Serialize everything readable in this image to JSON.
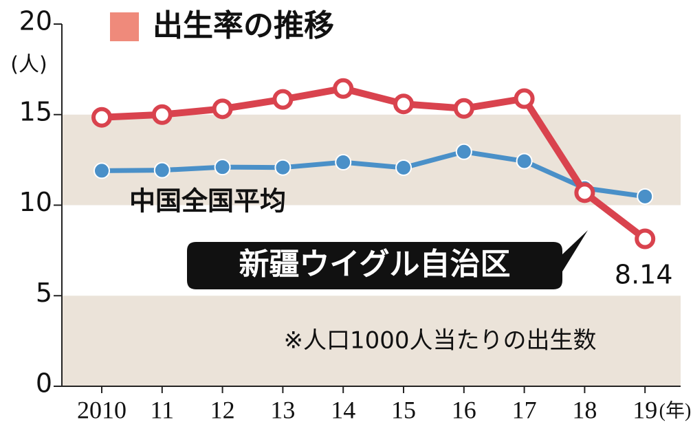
{
  "chart_data": {
    "type": "line",
    "title": "出生率の推移",
    "title_marker_color": "#ef8a7b",
    "y_label": "(人)",
    "x_label": "(年)",
    "note": "※人口1000人当たりの出生数",
    "categories": [
      "2010",
      "11",
      "12",
      "13",
      "14",
      "15",
      "16",
      "17",
      "18",
      "19"
    ],
    "series": [
      {
        "name": "中国全国平均",
        "color": "#4a90c8",
        "values": [
          11.9,
          11.93,
          12.1,
          12.08,
          12.37,
          12.07,
          12.95,
          12.43,
          10.94,
          10.48
        ]
      },
      {
        "name": "新疆ウイグル自治区",
        "color": "#d9434e",
        "values": [
          14.85,
          15.0,
          15.32,
          15.84,
          16.44,
          15.59,
          15.34,
          15.88,
          10.69,
          8.14
        ]
      }
    ],
    "ylim": [
      0,
      20
    ],
    "yticks": [
      0,
      5,
      10,
      15,
      20
    ],
    "shaded_bands": [
      [
        0,
        5
      ],
      [
        10,
        15
      ]
    ],
    "band_color": "#ebe3d9"
  }
}
